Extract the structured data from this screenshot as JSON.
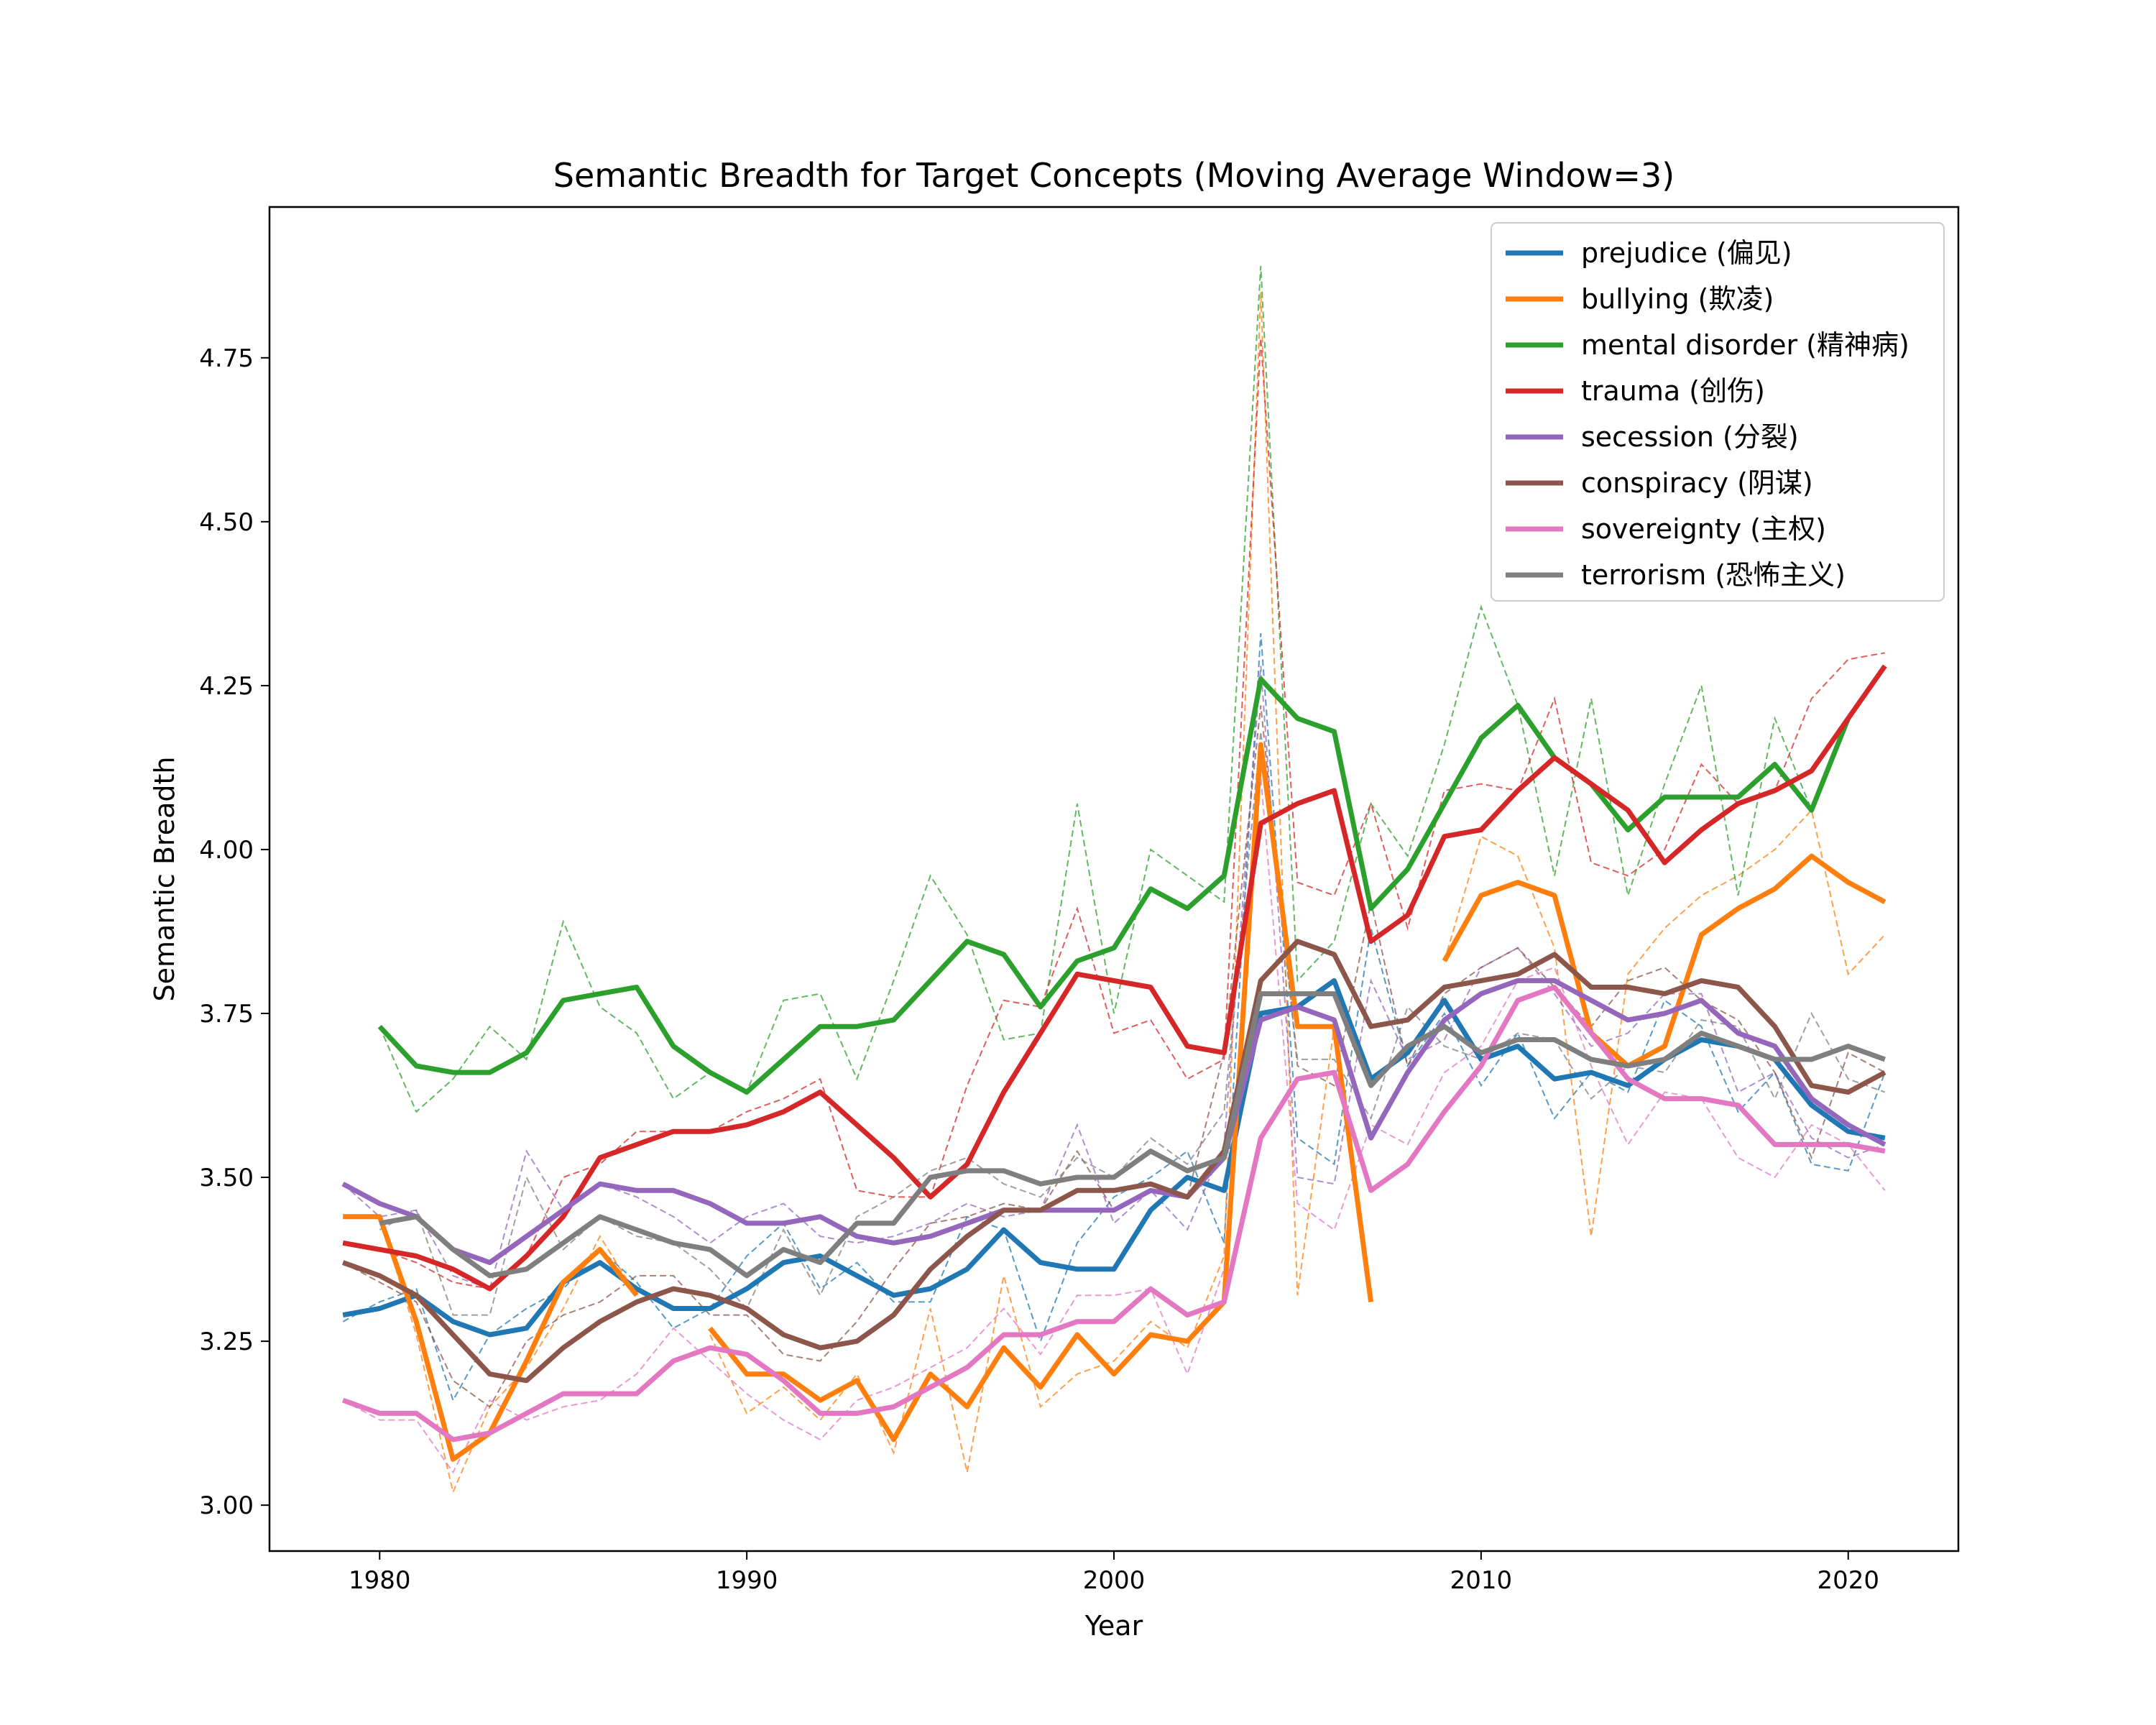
{
  "chart_data": {
    "type": "line",
    "title": "Semantic Breadth for Target Concepts (Moving Average Window=3)",
    "xlabel": "Year",
    "ylabel": "Semantic Breadth",
    "xlim": [
      1977,
      2023
    ],
    "ylim": [
      2.93,
      4.98
    ],
    "x_ticks": [
      1980,
      1990,
      2000,
      2010,
      2020
    ],
    "y_ticks": [
      3.0,
      3.25,
      3.5,
      3.75,
      4.0,
      4.25,
      4.5,
      4.75
    ],
    "y_tick_labels": [
      "3.00",
      "3.25",
      "3.50",
      "3.75",
      "4.00",
      "4.25",
      "4.50",
      "4.75"
    ],
    "grid": false,
    "legend": {
      "position": "top-right"
    },
    "years": [
      1979,
      1980,
      1981,
      1982,
      1983,
      1984,
      1985,
      1986,
      1987,
      1988,
      1989,
      1990,
      1991,
      1992,
      1993,
      1994,
      1995,
      1996,
      1997,
      1998,
      1999,
      2000,
      2001,
      2002,
      2003,
      2004,
      2005,
      2006,
      2007,
      2008,
      2009,
      2010,
      2011,
      2012,
      2013,
      2014,
      2015,
      2016,
      2017,
      2018,
      2019,
      2020,
      2021
    ],
    "series": [
      {
        "name": "prejudice (偏见)",
        "color": "#1f77b4",
        "values": [
          3.29,
          3.3,
          3.32,
          3.28,
          3.26,
          3.27,
          3.34,
          3.37,
          3.33,
          3.3,
          3.3,
          3.33,
          3.37,
          3.38,
          3.35,
          3.32,
          3.33,
          3.36,
          3.42,
          3.37,
          3.36,
          3.36,
          3.45,
          3.5,
          3.48,
          3.75,
          3.76,
          3.8,
          3.65,
          3.69,
          3.77,
          3.68,
          3.7,
          3.65,
          3.66,
          3.64,
          3.68,
          3.71,
          3.7,
          3.68,
          3.61,
          3.57,
          3.56
        ],
        "raw": [
          3.28,
          3.31,
          3.33,
          3.16,
          3.26,
          3.3,
          3.33,
          3.39,
          3.34,
          3.27,
          3.3,
          3.38,
          3.43,
          3.33,
          3.37,
          3.31,
          3.31,
          3.44,
          3.42,
          3.25,
          3.4,
          3.47,
          3.5,
          3.54,
          3.4,
          4.33,
          3.56,
          3.52,
          3.88,
          3.67,
          3.75,
          3.64,
          3.72,
          3.59,
          3.66,
          3.63,
          3.77,
          3.73,
          3.6,
          3.66,
          3.52,
          3.51,
          3.66
        ]
      },
      {
        "name": "bullying (欺凌)",
        "color": "#ff7f0e",
        "values": [
          3.44,
          3.44,
          3.28,
          3.07,
          3.11,
          3.22,
          3.34,
          3.39,
          3.32,
          null,
          3.27,
          3.2,
          3.2,
          3.16,
          3.19,
          3.1,
          3.2,
          3.15,
          3.24,
          3.18,
          3.26,
          3.2,
          3.26,
          3.25,
          3.31,
          4.16,
          3.73,
          3.73,
          3.31,
          null,
          3.83,
          3.93,
          3.95,
          3.93,
          3.72,
          3.67,
          3.7,
          3.87,
          3.91,
          3.94,
          3.99,
          3.95,
          3.92
        ],
        "raw": [
          3.44,
          3.44,
          3.26,
          3.02,
          3.15,
          3.21,
          3.3,
          3.41,
          3.32,
          null,
          3.26,
          3.14,
          3.18,
          3.13,
          3.2,
          3.08,
          3.3,
          3.05,
          3.35,
          3.15,
          3.2,
          3.22,
          3.28,
          3.24,
          3.38,
          4.85,
          3.32,
          3.73,
          3.31,
          null,
          3.83,
          4.02,
          3.99,
          3.85,
          3.41,
          3.81,
          3.88,
          3.93,
          3.96,
          4.0,
          4.06,
          3.81,
          3.87
        ]
      },
      {
        "name": "mental disorder (精神病)",
        "color": "#2ca02c",
        "values": [
          null,
          3.73,
          3.67,
          3.66,
          3.66,
          3.69,
          3.77,
          3.78,
          3.79,
          3.7,
          3.66,
          3.63,
          3.68,
          3.73,
          3.73,
          3.74,
          3.8,
          3.86,
          3.84,
          3.76,
          3.83,
          3.85,
          3.94,
          3.91,
          3.96,
          4.26,
          4.2,
          4.18,
          3.91,
          3.97,
          4.07,
          4.17,
          4.22,
          4.14,
          4.1,
          4.03,
          4.08,
          4.08,
          4.08,
          4.13,
          4.06,
          4.2,
          null
        ],
        "raw": [
          null,
          3.73,
          3.6,
          3.65,
          3.73,
          3.68,
          3.89,
          3.76,
          3.72,
          3.62,
          3.66,
          3.63,
          3.77,
          3.78,
          3.65,
          3.8,
          3.96,
          3.87,
          3.71,
          3.72,
          4.07,
          3.75,
          4.0,
          3.96,
          3.92,
          4.89,
          3.8,
          3.86,
          4.07,
          3.99,
          4.16,
          4.37,
          4.22,
          3.96,
          4.23,
          3.93,
          4.1,
          4.25,
          3.93,
          4.2,
          4.06,
          4.2,
          null
        ]
      },
      {
        "name": "trauma (创伤)",
        "color": "#d62728",
        "values": [
          3.4,
          3.39,
          3.38,
          3.36,
          3.33,
          3.38,
          3.44,
          3.53,
          3.55,
          3.57,
          3.57,
          3.58,
          3.6,
          3.63,
          3.58,
          3.53,
          3.47,
          3.52,
          3.63,
          3.72,
          3.81,
          3.8,
          3.79,
          3.7,
          3.69,
          4.04,
          4.07,
          4.09,
          3.86,
          3.9,
          4.02,
          4.03,
          4.09,
          4.14,
          4.1,
          4.06,
          3.98,
          4.03,
          4.07,
          4.09,
          4.12,
          4.2,
          4.28
        ],
        "raw": [
          3.4,
          3.39,
          3.37,
          3.34,
          3.33,
          3.38,
          3.5,
          3.52,
          3.57,
          3.57,
          3.57,
          3.6,
          3.62,
          3.65,
          3.48,
          3.47,
          3.47,
          3.64,
          3.77,
          3.76,
          3.91,
          3.72,
          3.74,
          3.65,
          3.68,
          4.78,
          3.95,
          3.93,
          4.07,
          3.88,
          4.09,
          4.1,
          4.09,
          4.23,
          3.98,
          3.96,
          4.0,
          4.13,
          4.07,
          4.09,
          4.23,
          4.29,
          4.3
        ]
      },
      {
        "name": "secession (分裂)",
        "color": "#9467bd",
        "values": [
          3.49,
          3.46,
          3.44,
          3.39,
          3.37,
          3.41,
          3.45,
          3.49,
          3.48,
          3.48,
          3.46,
          3.43,
          3.43,
          3.44,
          3.41,
          3.4,
          3.41,
          3.43,
          3.45,
          3.45,
          3.45,
          3.45,
          3.48,
          3.47,
          3.53,
          3.74,
          3.76,
          3.74,
          3.56,
          3.66,
          3.74,
          3.78,
          3.8,
          3.8,
          3.77,
          3.74,
          3.75,
          3.77,
          3.72,
          3.7,
          3.62,
          3.58,
          3.55
        ],
        "raw": [
          3.49,
          3.44,
          3.45,
          3.35,
          3.33,
          3.54,
          3.45,
          3.49,
          3.47,
          3.44,
          3.4,
          3.44,
          3.46,
          3.41,
          3.4,
          3.41,
          3.43,
          3.46,
          3.44,
          3.45,
          3.58,
          3.43,
          3.48,
          3.42,
          3.55,
          4.28,
          3.5,
          3.49,
          3.8,
          3.68,
          3.71,
          3.82,
          3.85,
          3.78,
          3.7,
          3.72,
          3.78,
          3.78,
          3.63,
          3.66,
          3.56,
          3.53,
          3.55
        ]
      },
      {
        "name": "conspiracy (阴谋)",
        "color": "#8c564b",
        "values": [
          3.37,
          3.35,
          3.32,
          3.26,
          3.2,
          3.19,
          3.24,
          3.28,
          3.31,
          3.33,
          3.32,
          3.3,
          3.26,
          3.24,
          3.25,
          3.29,
          3.36,
          3.41,
          3.45,
          3.45,
          3.48,
          3.48,
          3.49,
          3.47,
          3.54,
          3.8,
          3.86,
          3.84,
          3.73,
          3.74,
          3.79,
          3.8,
          3.81,
          3.84,
          3.79,
          3.79,
          3.78,
          3.8,
          3.79,
          3.73,
          3.64,
          3.63,
          3.66
        ],
        "raw": [
          3.37,
          3.34,
          3.31,
          3.19,
          3.15,
          3.25,
          3.29,
          3.31,
          3.35,
          3.35,
          3.29,
          3.29,
          3.23,
          3.22,
          3.28,
          3.36,
          3.43,
          3.44,
          3.46,
          3.45,
          3.54,
          3.45,
          3.48,
          3.47,
          3.69,
          4.22,
          3.67,
          3.64,
          3.92,
          3.67,
          3.78,
          3.82,
          3.85,
          3.79,
          3.73,
          3.8,
          3.82,
          3.77,
          3.74,
          3.66,
          3.53,
          3.69,
          3.66
        ]
      },
      {
        "name": "sovereignty (主权)",
        "color": "#e377c2",
        "values": [
          3.16,
          3.14,
          3.14,
          3.1,
          3.11,
          3.14,
          3.17,
          3.17,
          3.17,
          3.22,
          3.24,
          3.23,
          3.19,
          3.14,
          3.14,
          3.15,
          3.18,
          3.21,
          3.26,
          3.26,
          3.28,
          3.28,
          3.33,
          3.29,
          3.31,
          3.56,
          3.65,
          3.66,
          3.48,
          3.52,
          3.6,
          3.67,
          3.77,
          3.79,
          3.72,
          3.65,
          3.62,
          3.62,
          3.61,
          3.55,
          3.55,
          3.55,
          3.54
        ],
        "raw": [
          3.16,
          3.13,
          3.13,
          3.05,
          3.16,
          3.13,
          3.15,
          3.16,
          3.2,
          3.27,
          3.22,
          3.17,
          3.13,
          3.1,
          3.16,
          3.18,
          3.21,
          3.24,
          3.3,
          3.23,
          3.32,
          3.32,
          3.33,
          3.2,
          3.36,
          4.11,
          3.46,
          3.42,
          3.58,
          3.55,
          3.66,
          3.7,
          3.8,
          3.82,
          3.67,
          3.55,
          3.63,
          3.62,
          3.53,
          3.5,
          3.58,
          3.55,
          3.48
        ]
      },
      {
        "name": "terrorism (恐怖主义)",
        "color": "#7f7f7f",
        "values": [
          null,
          3.43,
          3.44,
          3.39,
          3.35,
          3.36,
          3.4,
          3.44,
          3.42,
          3.4,
          3.39,
          3.35,
          3.39,
          3.37,
          3.43,
          3.43,
          3.5,
          3.51,
          3.51,
          3.49,
          3.5,
          3.5,
          3.54,
          3.51,
          3.53,
          3.78,
          3.78,
          3.78,
          3.64,
          3.7,
          3.73,
          3.69,
          3.71,
          3.71,
          3.68,
          3.67,
          3.68,
          3.72,
          3.7,
          3.68,
          3.68,
          3.7,
          3.68
        ],
        "raw": [
          null,
          3.42,
          3.45,
          3.29,
          3.29,
          3.5,
          3.39,
          3.44,
          3.41,
          3.4,
          3.36,
          3.3,
          3.42,
          3.32,
          3.44,
          3.47,
          3.51,
          3.53,
          3.49,
          3.47,
          3.53,
          3.5,
          3.56,
          3.52,
          3.6,
          4.18,
          3.68,
          3.68,
          3.59,
          3.76,
          3.7,
          3.68,
          3.72,
          3.71,
          3.62,
          3.67,
          3.66,
          3.74,
          3.73,
          3.62,
          3.75,
          3.65,
          3.63
        ]
      }
    ]
  }
}
